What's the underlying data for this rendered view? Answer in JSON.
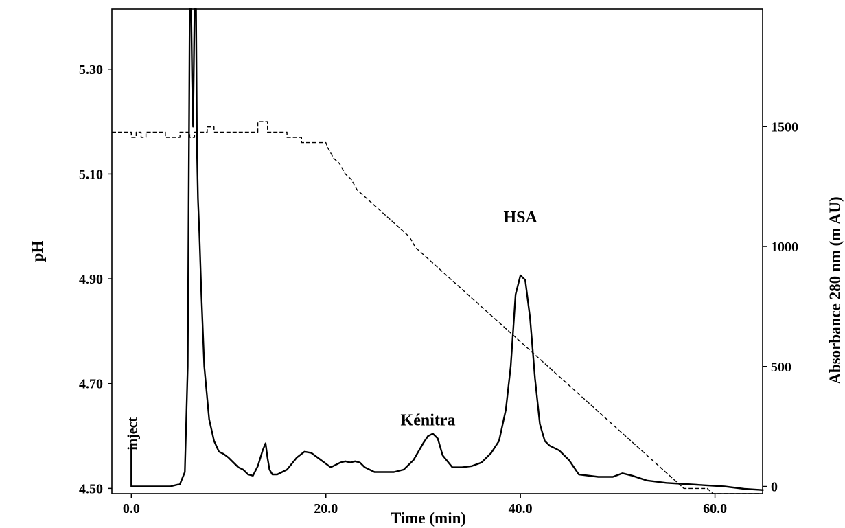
{
  "chart_data": {
    "type": "line",
    "xlabel": "Time (min)",
    "ylabel_left": "pH",
    "ylabel_right": "Absorbance 280 nm (m AU)",
    "xlim": [
      -2.0,
      64.9
    ],
    "ylim_left": [
      4.49,
      5.415
    ],
    "ylim_right": [
      -30,
      1990
    ],
    "x_ticks": [
      0.0,
      20.0,
      40.0,
      60.0
    ],
    "x_tick_labels": [
      "0.0",
      "20.0",
      "40.0",
      "60.0"
    ],
    "y_left_ticks": [
      4.5,
      4.7,
      4.9,
      5.1,
      5.3
    ],
    "y_left_tick_labels": [
      "4.50",
      "4.70",
      "4.90",
      "5.10",
      "5.30"
    ],
    "y_right_ticks": [
      0,
      500,
      1000,
      1500
    ],
    "y_right_tick_labels": [
      "0",
      "500",
      "1000",
      "1500"
    ],
    "annotations": [
      {
        "text": "inject",
        "x": 0.0,
        "y": 140
      },
      {
        "text": "Kénitra",
        "x": 30.5,
        "y": 255
      },
      {
        "text": "HSA",
        "x": 40.0,
        "y": 1100
      }
    ],
    "series": [
      {
        "axis": "right",
        "line": "solid",
        "x": [
          0.0,
          0.0,
          2.0,
          4.0,
          5.0,
          5.5,
          5.8,
          6.0,
          6.15,
          6.25,
          6.35,
          6.5,
          6.65,
          6.75,
          6.85,
          7.0,
          7.2,
          7.5,
          8.0,
          8.5,
          9.0,
          9.5,
          10.0,
          10.5,
          11.0,
          11.5,
          12.0,
          12.5,
          13.0,
          13.5,
          13.8,
          14.0,
          14.2,
          14.5,
          15.0,
          16.0,
          17.0,
          17.8,
          18.5,
          19.5,
          20.5,
          21.0,
          21.5,
          22.0,
          22.5,
          23.0,
          23.5,
          24.0,
          25.0,
          26.0,
          27.0,
          28.0,
          29.0,
          30.0,
          30.5,
          31.0,
          31.5,
          32.0,
          33.0,
          34.0,
          35.0,
          36.0,
          37.0,
          37.8,
          38.5,
          39.0,
          39.5,
          40.0,
          40.5,
          41.0,
          41.5,
          42.0,
          42.5,
          43.0,
          43.5,
          44.0,
          45.0,
          46.0,
          48.0,
          49.5,
          50.5,
          51.5,
          53.0,
          55.0,
          57.0,
          59.0,
          61.0,
          63.0,
          65.0
        ],
        "y": [
          180,
          0,
          0,
          0,
          10,
          60,
          500,
          2050,
          2050,
          1700,
          1500,
          2050,
          2050,
          1400,
          1200,
          1050,
          800,
          500,
          280,
          190,
          145,
          135,
          120,
          100,
          80,
          70,
          50,
          45,
          85,
          150,
          180,
          120,
          70,
          50,
          50,
          70,
          120,
          145,
          140,
          110,
          80,
          90,
          100,
          105,
          100,
          105,
          100,
          80,
          60,
          60,
          60,
          70,
          110,
          180,
          210,
          220,
          200,
          130,
          80,
          80,
          85,
          100,
          140,
          190,
          320,
          500,
          800,
          880,
          860,
          700,
          450,
          260,
          190,
          170,
          160,
          150,
          110,
          50,
          40,
          40,
          55,
          45,
          25,
          15,
          10,
          5,
          0,
          -10,
          -15
        ]
      },
      {
        "axis": "left",
        "line": "dashed",
        "x": [
          -2.0,
          0.0,
          0.0,
          0.5,
          0.5,
          1.0,
          1.0,
          1.5,
          1.5,
          3.5,
          3.5,
          5.0,
          5.0,
          6.0,
          6.0,
          6.5,
          6.5,
          7.8,
          7.8,
          8.5,
          8.5,
          13.0,
          13.0,
          14.0,
          14.0,
          16.0,
          16.0,
          17.5,
          17.5,
          20.0,
          20.2,
          20.8,
          21.4,
          22.0,
          22.6,
          23.2,
          23.8,
          24.4,
          25.0,
          25.6,
          26.2,
          26.8,
          27.4,
          28.0,
          28.6,
          29.2,
          29.8,
          30.4,
          31.0,
          31.6,
          32.2,
          32.8,
          33.4,
          34.0,
          34.6,
          35.2,
          35.8,
          36.4,
          37.0,
          37.6,
          38.2,
          38.8,
          39.4,
          40.0,
          40.6,
          41.2,
          41.8,
          42.4,
          43.0,
          43.6,
          44.2,
          44.8,
          45.4,
          46.0,
          46.6,
          47.2,
          47.8,
          48.4,
          49.0,
          49.6,
          50.2,
          50.8,
          51.4,
          52.0,
          52.6,
          53.2,
          53.8,
          54.4,
          55.0,
          55.6,
          56.2,
          56.8,
          57.4,
          58.0,
          58.6,
          59.2,
          59.8,
          60.4,
          61.0,
          61.6,
          62.2,
          62.8,
          64.5
        ],
        "y": [
          5.18,
          5.18,
          5.17,
          5.17,
          5.18,
          5.18,
          5.17,
          5.17,
          5.18,
          5.18,
          5.17,
          5.17,
          5.18,
          5.18,
          5.17,
          5.17,
          5.18,
          5.18,
          5.19,
          5.19,
          5.18,
          5.18,
          5.2,
          5.2,
          5.18,
          5.18,
          5.17,
          5.17,
          5.16,
          5.16,
          5.15,
          5.13,
          5.12,
          5.1,
          5.09,
          5.07,
          5.06,
          5.05,
          5.04,
          5.03,
          5.02,
          5.01,
          5.0,
          4.99,
          4.98,
          4.96,
          4.95,
          4.94,
          4.93,
          4.92,
          4.91,
          4.9,
          4.89,
          4.88,
          4.87,
          4.86,
          4.85,
          4.84,
          4.83,
          4.82,
          4.81,
          4.8,
          4.79,
          4.78,
          4.77,
          4.76,
          4.75,
          4.74,
          4.73,
          4.72,
          4.71,
          4.7,
          4.69,
          4.68,
          4.67,
          4.66,
          4.65,
          4.64,
          4.63,
          4.62,
          4.61,
          4.6,
          4.59,
          4.58,
          4.57,
          4.56,
          4.55,
          4.54,
          4.53,
          4.52,
          4.51,
          4.5,
          4.5,
          4.5,
          4.5,
          4.5,
          4.49,
          4.49,
          4.49,
          4.49,
          4.49,
          4.49,
          4.49
        ]
      }
    ]
  }
}
